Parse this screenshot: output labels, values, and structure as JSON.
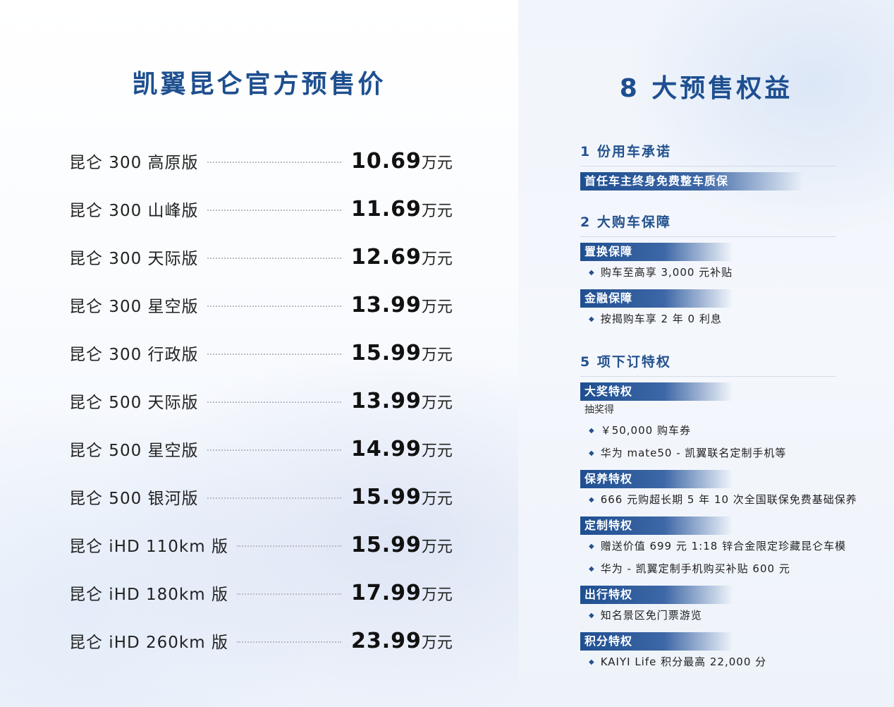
{
  "left": {
    "title": "凯翼昆仑官方预售价",
    "prices": [
      {
        "model": "昆仑 300 高原版",
        "price": "10.69",
        "unit": "万元"
      },
      {
        "model": "昆仑 300 山峰版",
        "price": "11.69",
        "unit": "万元"
      },
      {
        "model": "昆仑 300 天际版",
        "price": "12.69",
        "unit": "万元"
      },
      {
        "model": "昆仑 300 星空版",
        "price": "13.99",
        "unit": "万元"
      },
      {
        "model": "昆仑 300 行政版",
        "price": "15.99",
        "unit": "万元"
      },
      {
        "model": "昆仑 500 天际版",
        "price": "13.99",
        "unit": "万元"
      },
      {
        "model": "昆仑 500 星空版",
        "price": "14.99",
        "unit": "万元"
      },
      {
        "model": "昆仑 500 银河版",
        "price": "15.99",
        "unit": "万元"
      },
      {
        "model": "昆仑 iHD 110km 版",
        "price": "15.99",
        "unit": "万元"
      },
      {
        "model": "昆仑 iHD 180km 版",
        "price": "17.99",
        "unit": "万元"
      },
      {
        "model": "昆仑 iHD 260km 版",
        "price": "23.99",
        "unit": "万元"
      }
    ]
  },
  "right": {
    "title": "8 大预售权益",
    "sections": {
      "s1": {
        "heading": "1 份用车承诺",
        "tag": "首任车主终身免费整车质保"
      },
      "s2": {
        "heading": "2 大购车保障",
        "tag1": "置换保障",
        "item1": "购车至高享 3,000 元补贴",
        "tag2": "金融保障",
        "item2": "按揭购车享 2 年 0 利息"
      },
      "s3": {
        "heading": "5 项下订特权",
        "tag1": "大奖特权",
        "note1": "抽奖得",
        "item1a": "￥50,000 购车券",
        "item1b": "华为 mate50 - 凯翼联名定制手机等",
        "tag2": "保养特权",
        "item2": "666 元购超长期 5 年 10 次全国联保免费基础保养",
        "tag3": "定制特权",
        "item3a": "赠送价值 699 元 1:18 锌合金限定珍藏昆仑车模",
        "item3b": "华为 - 凯翼定制手机购买补贴 600 元",
        "tag4": "出行特权",
        "item4": "知名景区免门票游览",
        "tag5": "积分特权",
        "item5": "KAIYI Life 积分最高 22,000 分"
      }
    },
    "bullet_icon": "diamond-bullet"
  },
  "colors": {
    "title_blue": "#1e4f8f",
    "tag_blue": "#1f4f91"
  }
}
